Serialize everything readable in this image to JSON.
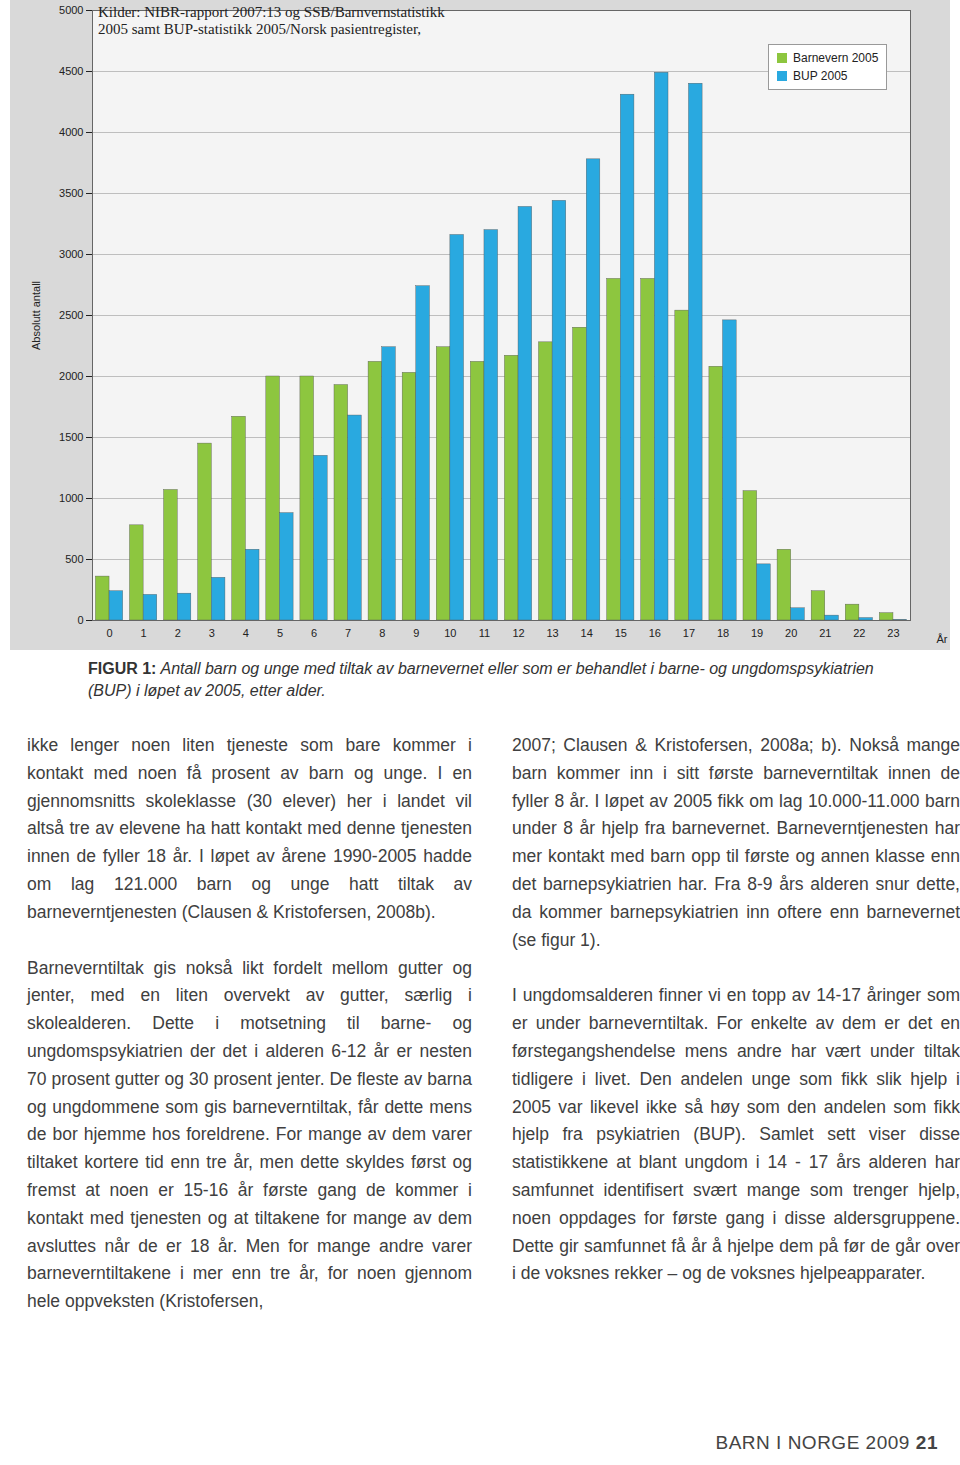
{
  "chart_data": {
    "type": "bar",
    "annotations": [
      "Kilder: NIBR-rapport 2007:13 og SSB/Barnvernstatistikk",
      "2005 samt BUP-statistikk 2005/Norsk pasientregister,"
    ],
    "x_label": "År",
    "y_label": "Absolutt antall",
    "categories": [
      0,
      1,
      2,
      3,
      4,
      5,
      6,
      7,
      8,
      9,
      10,
      11,
      12,
      13,
      14,
      15,
      16,
      17,
      18,
      19,
      20,
      21,
      22,
      23
    ],
    "series": [
      {
        "name": "Barnevern 2005",
        "color": "#8dc63f",
        "values": [
          360,
          780,
          1070,
          1450,
          1670,
          2000,
          2000,
          1930,
          2120,
          2030,
          2240,
          2120,
          2170,
          2280,
          2400,
          2800,
          2800,
          2540,
          2080,
          1060,
          580,
          240,
          130,
          60
        ]
      },
      {
        "name": "BUP 2005",
        "color": "#29a9e0",
        "values": [
          240,
          210,
          220,
          350,
          580,
          880,
          1350,
          1680,
          2240,
          2740,
          3160,
          3200,
          3390,
          3440,
          3780,
          4310,
          4490,
          4400,
          2460,
          460,
          100,
          40,
          20,
          5
        ]
      }
    ],
    "ylim": [
      0,
      5000
    ],
    "yticks": [
      0,
      500,
      1000,
      1500,
      2000,
      2500,
      3000,
      3500,
      4000,
      4500,
      5000
    ],
    "grid": true,
    "legend": "top-right"
  },
  "caption": {
    "label": "FIGUR 1:",
    "text": "Antall barn og unge med tiltak av barnevernet eller som er behandlet i barne- og ungdomspsykiatrien (BUP) i løpet av 2005, etter alder."
  },
  "columns": [
    [
      "ikke lenger noen liten tjeneste som bare kommer i kontakt med noen få prosent av barn og unge. I en gjennomsnitts skoleklasse (30 elever) her i landet vil altså tre av elevene ha hatt kontakt med denne tjenesten innen de fyller 18 år. I løpet av årene 1990-2005 hadde om lag 121.000 barn og unge hatt tiltak av barneverntjenesten (Clausen & Kristofersen, 2008b).",
      "Barneverntiltak gis nokså likt fordelt mellom gutter og jenter, med en liten overvekt av gutter, særlig i skolealderen. Dette i motsetning til barne- og ungdomspsykiatrien der det i alderen 6-12 år er nesten 70 prosent gutter og 30 prosent jenter. De fleste av barna og ungdommene som gis barneverntiltak, får dette mens de bor hjemme hos foreldrene. For mange av dem varer tiltaket kortere tid enn tre år, men dette skyldes først og fremst at noen er 15-16 år første gang de kommer i kontakt med tjenesten og at tiltakene for mange av dem avsluttes når de er 18 år. Men for mange andre varer barneverntiltakene i mer enn tre år, for noen gjennom hele oppveksten (Kristofersen,"
    ],
    [
      "2007; Clausen & Kristofersen, 2008a; b). Nokså mange barn kommer inn i sitt første barneverntiltak innen de fyller 8 år. I løpet av 2005 fikk om lag 10.000-11.000 barn under 8 år hjelp fra barnevernet. Barneverntjenesten har mer kontakt med barn opp til første og annen klasse enn det barnepsykiatrien har. Fra 8-9 års alderen snur dette, da kommer barnepsykiatrien inn oftere enn barnevernet (se figur 1).",
      "I ungdomsalderen finner vi en topp av 14-17 åringer som er under barneverntiltak. For enkelte av dem er det en førstegangshendelse mens andre har vært under tiltak tidligere i livet. Den andelen unge som fikk slik hjelp i 2005 var likevel ikke så høy som den andelen som fikk hjelp fra psykiatrien (BUP). Samlet sett viser disse statistikkene at blant ungdom i 14 - 17 års alderen har samfunnet identifisert svært mange som trenger hjelp, noen oppdages for første gang i disse aldersgruppene. Dette gir samfunnet få år å hjelpe dem på før de går over i de voksnes rekker – og de voksnes hjelpeapparater."
    ]
  ],
  "footer": {
    "text": "BARN I NORGE 2009",
    "page": "21"
  }
}
